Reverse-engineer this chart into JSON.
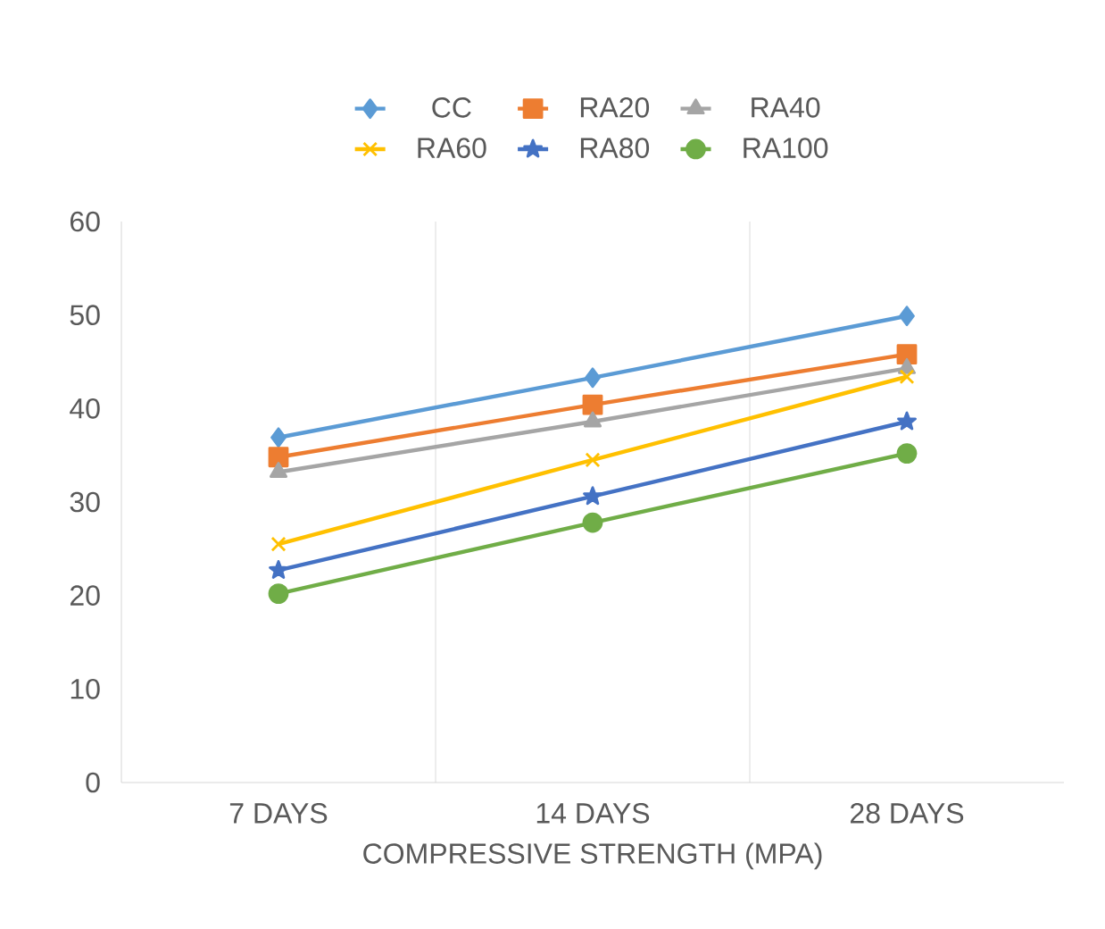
{
  "chart_data": {
    "type": "line",
    "xlabel": "COMPRESSIVE STRENGTH (MPA)",
    "categories": [
      "7 DAYS",
      "14 DAYS",
      "28 DAYS"
    ],
    "series": [
      {
        "name": "CC",
        "color": "#5b9bd5",
        "marker": "diamond",
        "values": [
          36.9,
          43.3,
          49.9
        ]
      },
      {
        "name": "RA20",
        "color": "#ed7d31",
        "marker": "square",
        "values": [
          34.8,
          40.4,
          45.8
        ]
      },
      {
        "name": "RA40",
        "color": "#a5a5a5",
        "marker": "triangle",
        "values": [
          33.2,
          38.6,
          44.3
        ]
      },
      {
        "name": "RA60",
        "color": "#ffc000",
        "marker": "cross",
        "values": [
          25.5,
          34.5,
          43.4
        ]
      },
      {
        "name": "RA80",
        "color": "#4472c4",
        "marker": "star",
        "values": [
          22.7,
          30.6,
          38.6
        ]
      },
      {
        "name": "RA100",
        "color": "#70ad47",
        "marker": "circle",
        "values": [
          20.2,
          27.8,
          35.2
        ]
      }
    ],
    "ylim": [
      0,
      60
    ],
    "yticks": [
      0,
      10,
      20,
      30,
      40,
      50,
      60
    ],
    "grid": "x",
    "legend": "top"
  }
}
